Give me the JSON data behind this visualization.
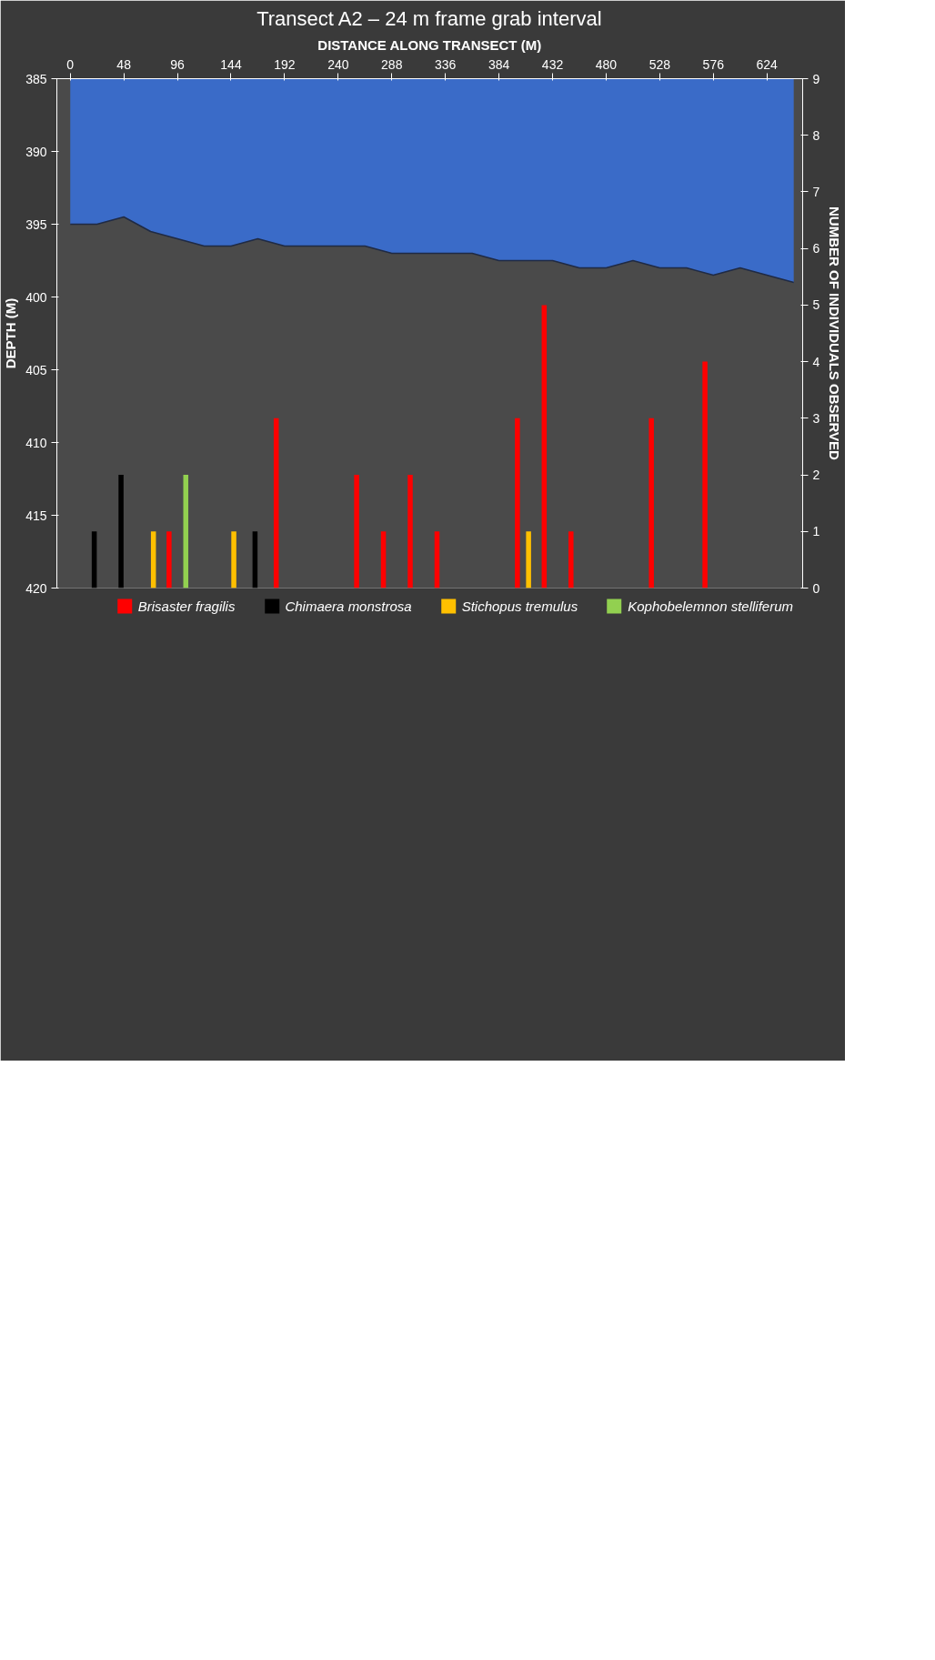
{
  "chart_data": {
    "type": "bar",
    "title": "Transect A2 – 24 m frame grab interval",
    "xlabel": "DISTANCE ALONG TRANSECT (M)",
    "ylabel": "DEPTH (M)",
    "y2label": "NUMBER OF INDIVIDUALS OBSERVED",
    "xlim": [
      -12,
      656
    ],
    "xticks": [
      0,
      48,
      96,
      144,
      192,
      240,
      288,
      336,
      384,
      432,
      480,
      528,
      576,
      624
    ],
    "ylim": [
      420,
      385
    ],
    "yticks": [
      385,
      390,
      395,
      400,
      405,
      410,
      415,
      420
    ],
    "y2lim": [
      0,
      9
    ],
    "y2ticks": [
      0,
      1,
      2,
      3,
      4,
      5,
      6,
      7,
      8,
      9
    ],
    "legend": "bottom",
    "grid": false,
    "series": [
      {
        "type": "area",
        "axis": "y",
        "color": "#3a6bc8",
        "x": [
          0,
          24,
          48,
          72,
          96,
          120,
          144,
          168,
          192,
          216,
          240,
          264,
          288,
          312,
          336,
          360,
          384,
          408,
          432,
          456,
          480,
          504,
          528,
          552,
          576,
          600,
          624,
          648
        ],
        "values": [
          395,
          395,
          394.5,
          395.5,
          396,
          396.5,
          396.5,
          396,
          396.5,
          396.5,
          396.5,
          396.5,
          397,
          397,
          397,
          397,
          397.5,
          397.5,
          397.5,
          398,
          398,
          397.5,
          398,
          398,
          398.5,
          398,
          398.5,
          399
        ]
      },
      {
        "axis": "y2",
        "name": "Brisaster fragilis",
        "color": "#ff0000",
        "x": [
          96,
          192,
          264,
          288,
          312,
          336,
          408,
          432,
          456,
          528,
          576
        ],
        "values": [
          1,
          3,
          2,
          1,
          2,
          1,
          3,
          5,
          1,
          3,
          4
        ]
      },
      {
        "axis": "y2",
        "name": "Chimaera monstrosa",
        "color": "#000000",
        "x": [
          24,
          48,
          168
        ],
        "values": [
          1,
          2,
          1
        ]
      },
      {
        "axis": "y2",
        "name": "Stichopus tremulus",
        "color": "#ffc000",
        "x": [
          72,
          144,
          408
        ],
        "values": [
          1,
          1,
          1
        ]
      },
      {
        "axis": "y2",
        "name": "Kophobelemnon stelliferum",
        "color": "#92d050",
        "x": [
          96
        ],
        "values": [
          2
        ]
      }
    ]
  }
}
